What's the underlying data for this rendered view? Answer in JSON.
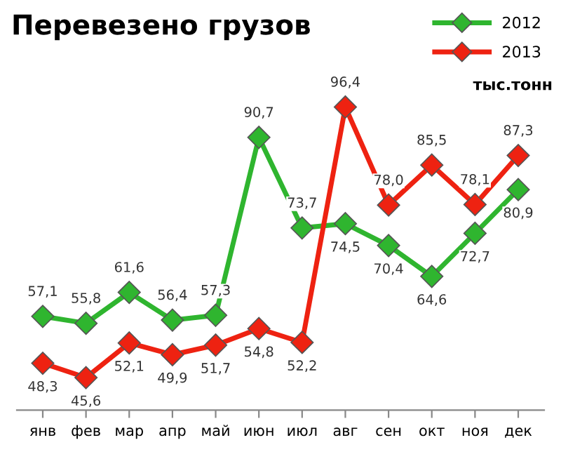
{
  "chart_data": {
    "type": "line",
    "title": "Перевезено грузов",
    "annotations": [
      "тыс.тонн"
    ],
    "categories": [
      "янв",
      "фев",
      "мар",
      "апр",
      "май",
      "июн",
      "июл",
      "авг",
      "сен",
      "окт",
      "ноя",
      "дек"
    ],
    "series": [
      {
        "name": "2012",
        "color": "#2fb52f",
        "values": [
          57.1,
          55.8,
          61.6,
          56.4,
          57.3,
          90.7,
          73.7,
          74.5,
          70.4,
          64.6,
          72.7,
          80.9
        ],
        "value_labels": [
          "57,1",
          "55,8",
          "61,6",
          "56,4",
          "57,3",
          "90,7",
          "73,7",
          "74,5",
          "70,4",
          "64,6",
          "72,7",
          "80,9"
        ]
      },
      {
        "name": "2013",
        "color": "#ee2211",
        "values": [
          48.3,
          45.6,
          52.1,
          49.9,
          51.7,
          54.8,
          52.2,
          96.4,
          78.0,
          85.5,
          78.1,
          87.3
        ],
        "value_labels": [
          "48,3",
          "45,6",
          "52,1",
          "49,9",
          "51,7",
          "54,8",
          "52,2",
          "96,4",
          "78,0",
          "85,5",
          "78,1",
          "87,3"
        ]
      }
    ],
    "marker": "diamond",
    "line_style": "solid",
    "grid": false,
    "legend": "top right"
  }
}
